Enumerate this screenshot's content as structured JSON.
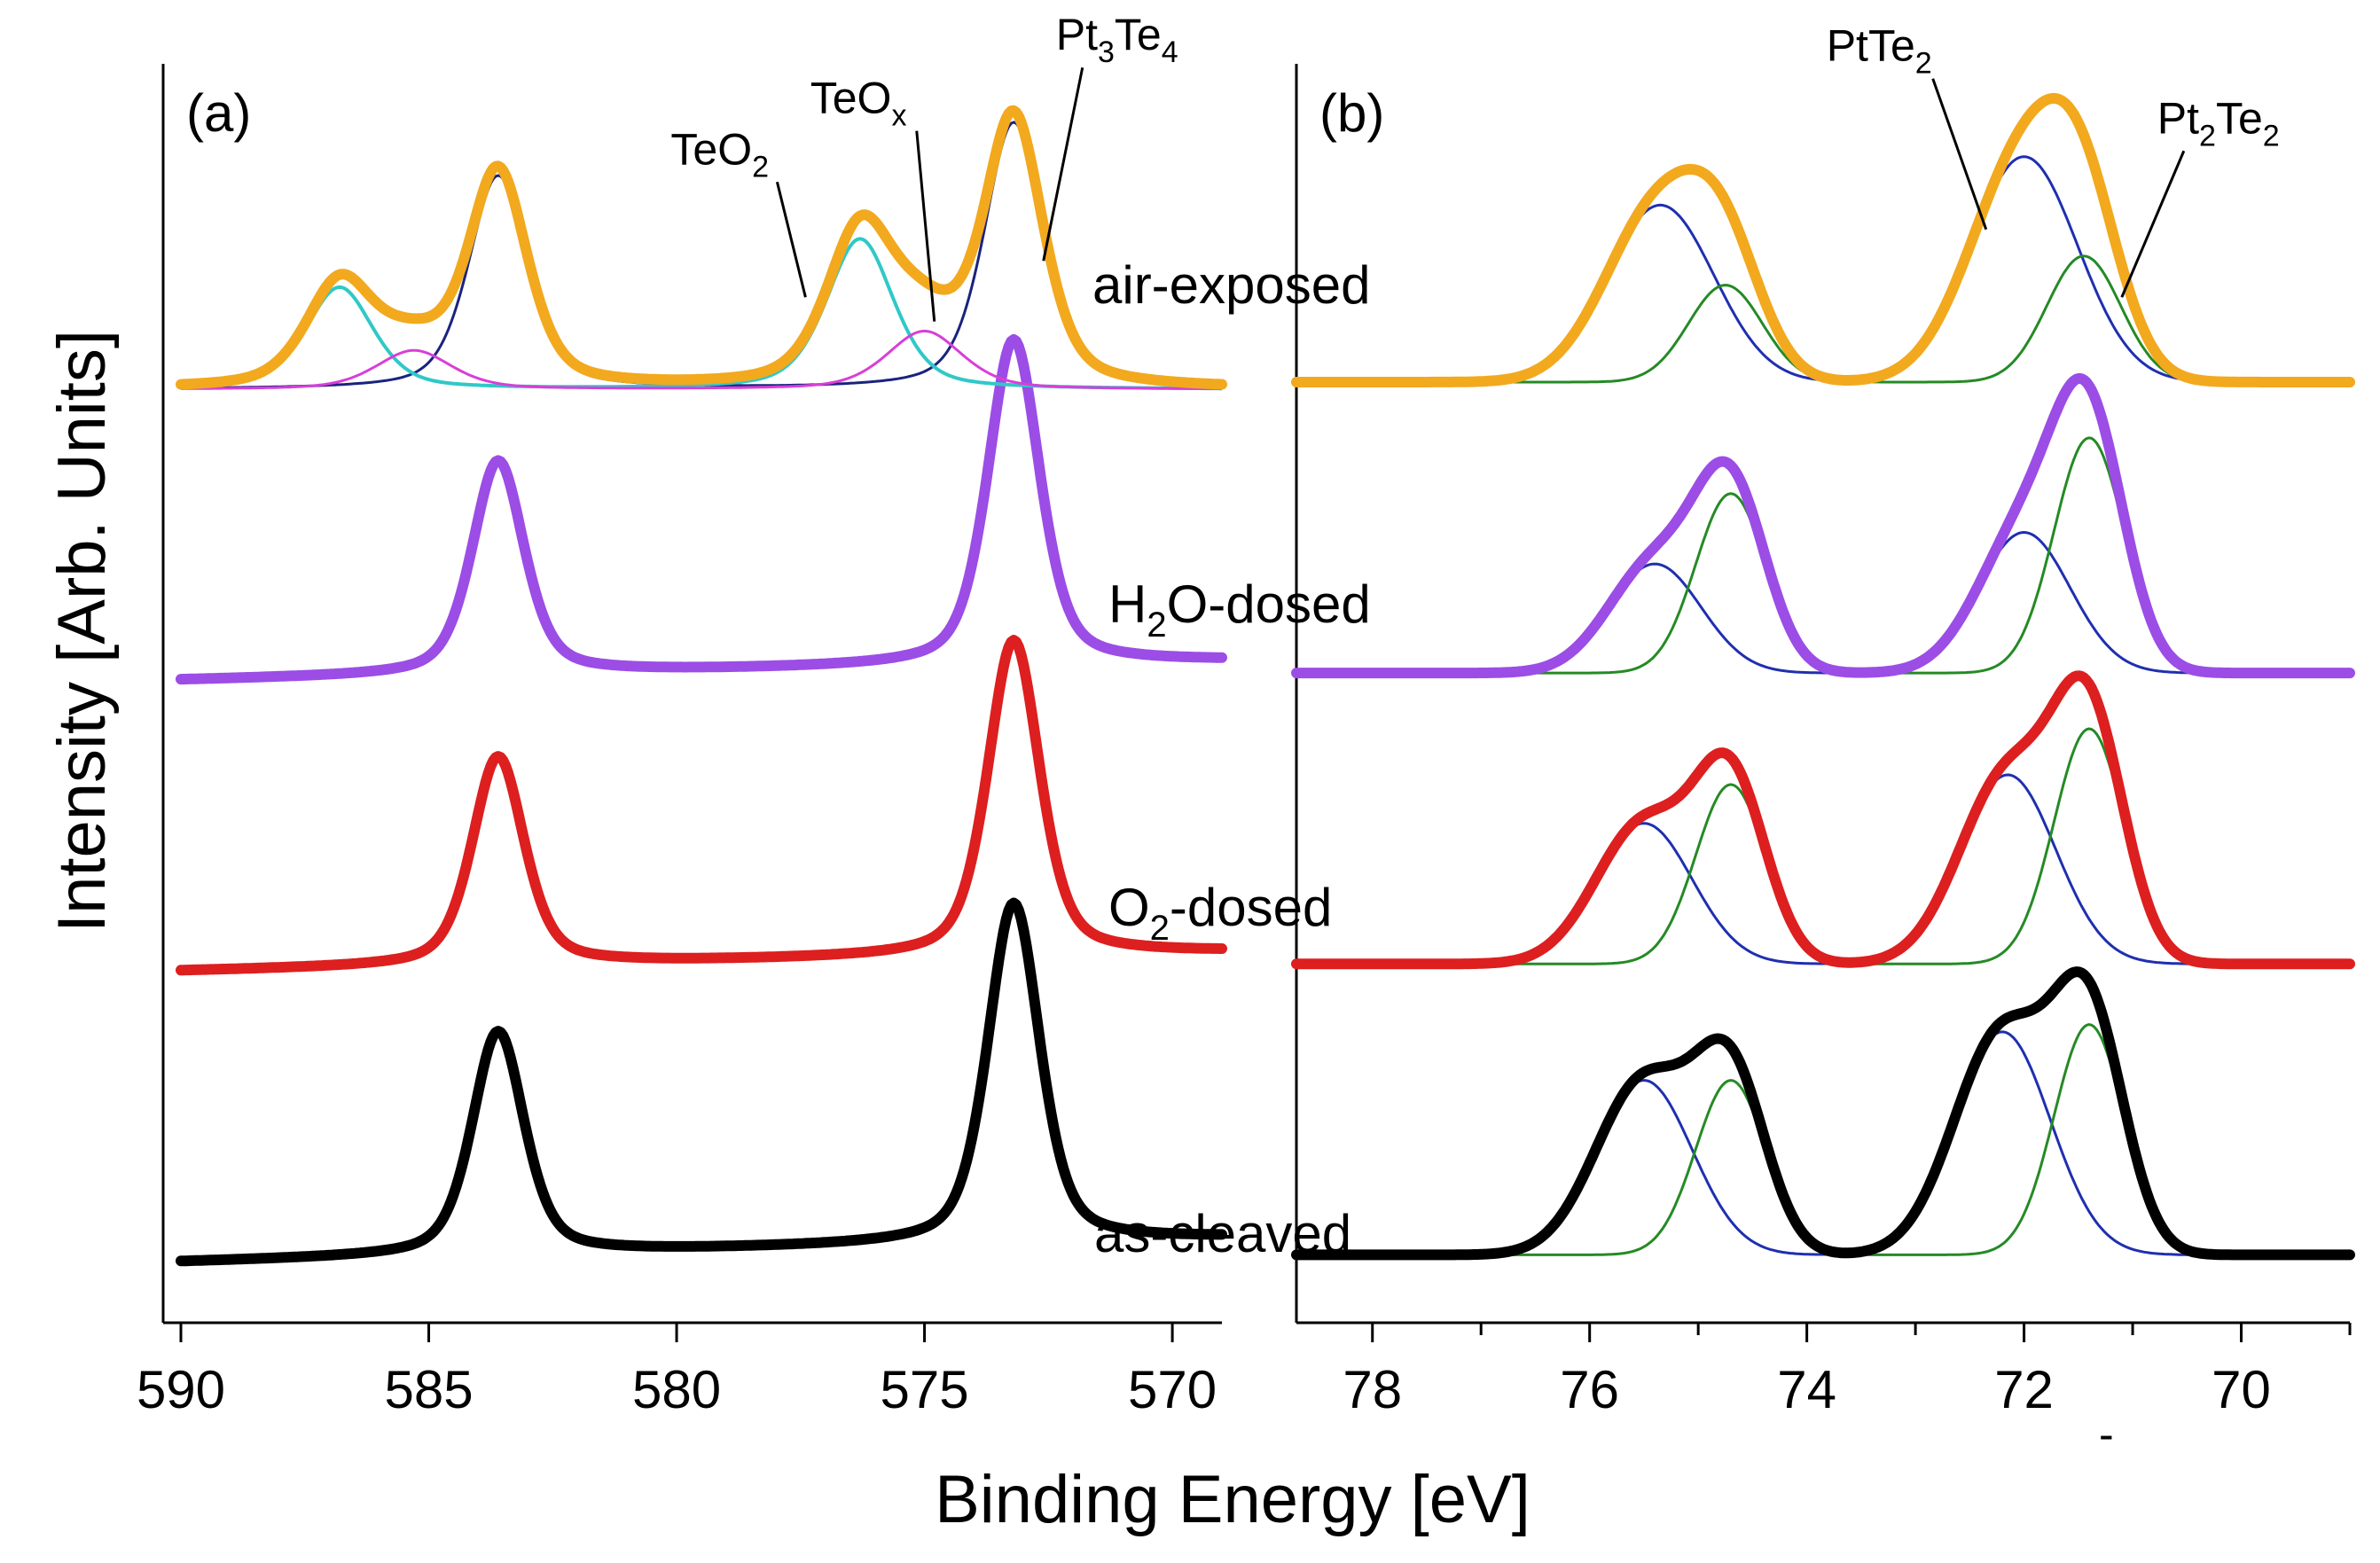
{
  "chart_data": {
    "type": "line",
    "title": "",
    "ylabel": "Intensity [Arb. Units]",
    "xlabel": "Binding Energy [eV]",
    "grid": false,
    "legend": "none",
    "panels": [
      {
        "id": "a",
        "label": "(a)",
        "xlim": [
          590,
          569
        ],
        "xticks": [
          590,
          585,
          580,
          575,
          570
        ],
        "xtick_labels": [
          "590",
          "585",
          "580",
          "575",
          "570"
        ],
        "ylim": [
          -0.25,
          4.95
        ],
        "series": [
          {
            "name": "as-cleaved",
            "color": "#000000",
            "width": 12,
            "offset": 0,
            "components": [
              {
                "center": 583.6,
                "width": 0.62,
                "amp": 0.92
              },
              {
                "center": 573.2,
                "width": 0.62,
                "amp": 1.4
              }
            ],
            "background": [
              0.0,
              0.1
            ]
          },
          {
            "name": "O2-dosed",
            "color": "#dd1f1f",
            "width": 12,
            "offset": 1.2,
            "components": [
              {
                "center": 583.6,
                "width": 0.62,
                "amp": 0.86
              },
              {
                "center": 573.2,
                "width": 0.62,
                "amp": 1.3
              }
            ],
            "background": [
              0.0,
              0.08
            ]
          },
          {
            "name": "H2O-dosed",
            "color": "#9b4de6",
            "width": 12,
            "offset": 2.4,
            "components": [
              {
                "center": 583.6,
                "width": 0.62,
                "amp": 0.88
              },
              {
                "center": 573.2,
                "width": 0.62,
                "amp": 1.34
              }
            ],
            "background": [
              0.0,
              0.08
            ]
          },
          {
            "name": "air-exposed",
            "color": "#f2a91e",
            "width": 12,
            "offset": 3.6,
            "envelope": true,
            "components": [
              {
                "center": 583.6,
                "width": 0.7,
                "amp": 0.88,
                "group": "Pt3Te4"
              },
              {
                "center": 573.2,
                "width": 0.7,
                "amp": 1.1,
                "group": "Pt3Te4"
              },
              {
                "center": 586.8,
                "width": 0.8,
                "amp": 0.42,
                "group": "TeO2"
              },
              {
                "center": 576.3,
                "width": 0.8,
                "amp": 0.62,
                "group": "TeO2"
              },
              {
                "center": 585.3,
                "width": 0.9,
                "amp": 0.16,
                "group": "TeOx"
              },
              {
                "center": 575.0,
                "width": 0.9,
                "amp": 0.24,
                "group": "TeOx"
              }
            ],
            "background": [
              0.0,
              0.0
            ]
          },
          {
            "name": "Pt3Te4 (air-exposed)",
            "color": "#1a237e",
            "width": 3,
            "offset": 3.6,
            "group": "Pt3Te4"
          },
          {
            "name": "TeO2 (air-exposed)",
            "color": "#30c8c8",
            "width": 4,
            "offset": 3.6,
            "group": "TeO2"
          },
          {
            "name": "TeOx (air-exposed)",
            "color": "#d83fd8",
            "width": 3,
            "offset": 3.6,
            "group": "TeOx"
          }
        ],
        "annotations": [
          {
            "text": "TeO",
            "sub": "2",
            "target_x": 577.4,
            "target_y": 3.98
          },
          {
            "text": "TeO",
            "sub": "x",
            "target_x": 574.8,
            "target_y": 3.88
          },
          {
            "text": "Pt",
            "sub": "3",
            "text2": "Te",
            "sub2": "4",
            "target_x": 572.6,
            "target_y": 4.13
          }
        ]
      },
      {
        "id": "b",
        "label": "(b)",
        "xlim": [
          78.7,
          69.0
        ],
        "xticks": [
          78,
          76,
          74,
          72,
          70
        ],
        "xtick_labels": [
          "78",
          "76",
          "74",
          "72",
          "70"
        ],
        "minor_xticks": [
          79,
          77,
          75,
          73,
          71,
          69
        ],
        "ylim": [
          -0.25,
          4.95
        ],
        "series": [
          {
            "name": "as-cleaved",
            "color": "#000000",
            "width": 12,
            "offset": 0,
            "components": [
              {
                "center": 75.5,
                "width": 0.52,
                "amp": 0.72,
                "group": "PtTe2"
              },
              {
                "center": 72.2,
                "width": 0.52,
                "amp": 0.92,
                "group": "PtTe2"
              },
              {
                "center": 74.7,
                "width": 0.38,
                "amp": 0.72,
                "group": "Pt2Te2"
              },
              {
                "center": 71.4,
                "width": 0.38,
                "amp": 0.95,
                "group": "Pt2Te2"
              }
            ],
            "background": [
              0.03,
              0.03
            ]
          },
          {
            "name": "O2-dosed",
            "color": "#dd1f1f",
            "width": 12,
            "offset": 1.2,
            "components": [
              {
                "center": 75.5,
                "width": 0.52,
                "amp": 0.58,
                "group": "PtTe2"
              },
              {
                "center": 72.15,
                "width": 0.52,
                "amp": 0.78,
                "group": "PtTe2"
              },
              {
                "center": 74.7,
                "width": 0.38,
                "amp": 0.74,
                "group": "Pt2Te2"
              },
              {
                "center": 71.4,
                "width": 0.38,
                "amp": 0.97,
                "group": "Pt2Te2"
              }
            ],
            "background": [
              0.03,
              0.03
            ]
          },
          {
            "name": "H2O-dosed",
            "color": "#9b4de6",
            "width": 12,
            "offset": 2.4,
            "components": [
              {
                "center": 75.4,
                "width": 0.5,
                "amp": 0.45,
                "group": "PtTe2"
              },
              {
                "center": 72.0,
                "width": 0.5,
                "amp": 0.58,
                "group": "PtTe2"
              },
              {
                "center": 74.7,
                "width": 0.38,
                "amp": 0.74,
                "group": "Pt2Te2"
              },
              {
                "center": 71.4,
                "width": 0.38,
                "amp": 0.97,
                "group": "Pt2Te2"
              }
            ],
            "background": [
              0.03,
              0.03
            ]
          },
          {
            "name": "air-exposed",
            "color": "#f2a91e",
            "width": 12,
            "offset": 3.6,
            "components": [
              {
                "center": 75.35,
                "width": 0.58,
                "amp": 0.73,
                "group": "PtTe2"
              },
              {
                "center": 72.0,
                "width": 0.58,
                "amp": 0.93,
                "group": "PtTe2"
              },
              {
                "center": 74.75,
                "width": 0.4,
                "amp": 0.4,
                "group": "Pt2Te2"
              },
              {
                "center": 71.45,
                "width": 0.4,
                "amp": 0.52,
                "group": "Pt2Te2"
              }
            ],
            "background": [
              0.03,
              0.03
            ]
          },
          {
            "name": "PtTe2 component",
            "color": "#1f2fb0",
            "width": 3,
            "group": "PtTe2"
          },
          {
            "name": "Pt2Te2 component",
            "color": "#258a25",
            "width": 3,
            "group": "Pt2Te2"
          }
        ],
        "annotations": [
          {
            "text": "PtTe",
            "sub": "2",
            "target_x": 72.35,
            "target_y": 4.26
          },
          {
            "text": "Pt",
            "sub": "2",
            "text2": "Te",
            "sub2": "2",
            "target_x": 71.1,
            "target_y": 3.98
          }
        ]
      }
    ],
    "series_labels": [
      {
        "main": "air-exposed"
      },
      {
        "pre": "H",
        "sub": "2",
        "post": "O-dosed"
      },
      {
        "pre": "O",
        "sub": "2",
        "post": "-dosed"
      },
      {
        "main": "as-cleaved"
      }
    ],
    "annotation_texts": [
      "TeO2",
      "TeOx",
      "Pt3Te4",
      "PtTe2",
      "Pt2Te2"
    ],
    "stray_mark": "-"
  }
}
